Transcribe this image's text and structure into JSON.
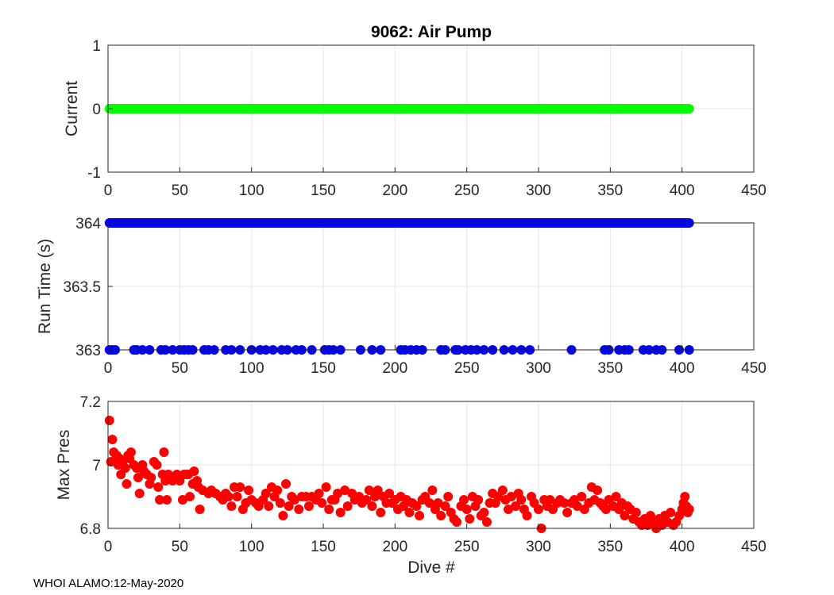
{
  "figure": {
    "footer": "WHOI ALAMO:12-May-2020"
  },
  "chart_data": [
    {
      "type": "scatter",
      "title": "9062: Air Pump",
      "ylabel": "Current",
      "xlabel": "",
      "xlim": [
        0,
        450
      ],
      "ylim": [
        -1,
        1
      ],
      "xticks": [
        0,
        50,
        100,
        150,
        200,
        250,
        300,
        350,
        400,
        450
      ],
      "yticks": [
        -1,
        0,
        1
      ],
      "ytick_labels": [
        "-1",
        "0",
        "1"
      ],
      "grid": true,
      "color": "#00ff00",
      "series": [
        {
          "name": "Current",
          "x_start": 1,
          "x_end": 405,
          "x_step": 1,
          "value": 0
        }
      ]
    },
    {
      "type": "scatter",
      "title": "",
      "ylabel": "Run Time (s)",
      "xlabel": "",
      "xlim": [
        0,
        450
      ],
      "ylim": [
        363,
        364
      ],
      "xticks": [
        0,
        50,
        100,
        150,
        200,
        250,
        300,
        350,
        400,
        450
      ],
      "yticks": [
        363,
        363.5,
        364
      ],
      "ytick_labels": [
        "363",
        "363.5",
        "364"
      ],
      "grid": true,
      "color": "#0000ff",
      "series": [
        {
          "name": "364 s",
          "value": 364,
          "x_start": 1,
          "x_end": 405,
          "x_step": 1
        },
        {
          "name": "363 s",
          "value": 363,
          "x": [
            1,
            3,
            5,
            18,
            20,
            24,
            29,
            37,
            40,
            45,
            50,
            53,
            56,
            59,
            67,
            70,
            74,
            82,
            86,
            92,
            100,
            106,
            110,
            115,
            121,
            125,
            131,
            135,
            142,
            151,
            154,
            157,
            162,
            176,
            184,
            190,
            204,
            207,
            211,
            215,
            219,
            232,
            235,
            242,
            244,
            249,
            253,
            257,
            262,
            268,
            276,
            282,
            288,
            294,
            323,
            346,
            349,
            356,
            360,
            363,
            373,
            377,
            382,
            386,
            398,
            405
          ]
        }
      ]
    },
    {
      "type": "scatter",
      "title": "",
      "ylabel": "Max Pres",
      "xlabel": "Dive #",
      "xlim": [
        0,
        450
      ],
      "ylim": [
        6.8,
        7.2
      ],
      "xticks": [
        0,
        50,
        100,
        150,
        200,
        250,
        300,
        350,
        400,
        450
      ],
      "yticks": [
        6.8,
        7.0,
        7.2
      ],
      "ytick_labels": [
        "6.8",
        "7",
        "7.2"
      ],
      "grid": true,
      "color": "#ff0000",
      "series": [
        {
          "name": "Max Pres",
          "points": [
            [
              1,
              7.14
            ],
            [
              2,
              7.01
            ],
            [
              3,
              7.08
            ],
            [
              4,
              7.04
            ],
            [
              6,
              7.03
            ],
            [
              7,
              7.0
            ],
            [
              8,
              7.02
            ],
            [
              9,
              6.97
            ],
            [
              10,
              7.01
            ],
            [
              12,
              6.99
            ],
            [
              13,
              6.94
            ],
            [
              14,
              7.03
            ],
            [
              15,
              7.02
            ],
            [
              16,
              7.04
            ],
            [
              18,
              7.0
            ],
            [
              20,
              6.99
            ],
            [
              21,
              6.96
            ],
            [
              22,
              6.91
            ],
            [
              24,
              7.0
            ],
            [
              25,
              6.98
            ],
            [
              27,
              6.97
            ],
            [
              29,
              6.94
            ],
            [
              30,
              6.96
            ],
            [
              32,
              7.01
            ],
            [
              34,
              7.0
            ],
            [
              35,
              6.93
            ],
            [
              36,
              6.89
            ],
            [
              38,
              6.97
            ],
            [
              39,
              7.04
            ],
            [
              40,
              6.95
            ],
            [
              41,
              6.89
            ],
            [
              42,
              6.97
            ],
            [
              45,
              6.95
            ],
            [
              47,
              6.96
            ],
            [
              48,
              6.97
            ],
            [
              50,
              6.95
            ],
            [
              52,
              6.89
            ],
            [
              53,
              6.97
            ],
            [
              55,
              6.97
            ],
            [
              56,
              6.97
            ],
            [
              57,
              6.9
            ],
            [
              59,
              6.94
            ],
            [
              60,
              6.98
            ],
            [
              62,
              6.95
            ],
            [
              63,
              6.93
            ],
            [
              64,
              6.86
            ],
            [
              66,
              6.92
            ],
            [
              70,
              6.91
            ],
            [
              72,
              6.92
            ],
            [
              75,
              6.91
            ],
            [
              78,
              6.9
            ],
            [
              80,
              6.89
            ],
            [
              82,
              6.91
            ],
            [
              84,
              6.9
            ],
            [
              86,
              6.87
            ],
            [
              88,
              6.93
            ],
            [
              90,
              6.9
            ],
            [
              92,
              6.93
            ],
            [
              94,
              6.86
            ],
            [
              96,
              6.88
            ],
            [
              98,
              6.92
            ],
            [
              100,
              6.89
            ],
            [
              103,
              6.88
            ],
            [
              105,
              6.87
            ],
            [
              108,
              6.89
            ],
            [
              110,
              6.91
            ],
            [
              112,
              6.87
            ],
            [
              114,
              6.93
            ],
            [
              116,
              6.9
            ],
            [
              118,
              6.92
            ],
            [
              120,
              6.88
            ],
            [
              122,
              6.84
            ],
            [
              124,
              6.94
            ],
            [
              126,
              6.87
            ],
            [
              128,
              6.9
            ],
            [
              130,
              6.89
            ],
            [
              133,
              6.86
            ],
            [
              135,
              6.9
            ],
            [
              138,
              6.9
            ],
            [
              140,
              6.87
            ],
            [
              142,
              6.9
            ],
            [
              145,
              6.89
            ],
            [
              147,
              6.91
            ],
            [
              149,
              6.88
            ],
            [
              152,
              6.93
            ],
            [
              154,
              6.86
            ],
            [
              156,
              6.89
            ],
            [
              158,
              6.89
            ],
            [
              160,
              6.91
            ],
            [
              162,
              6.85
            ],
            [
              165,
              6.92
            ],
            [
              167,
              6.87
            ],
            [
              170,
              6.91
            ],
            [
              172,
              6.89
            ],
            [
              175,
              6.9
            ],
            [
              177,
              6.88
            ],
            [
              180,
              6.89
            ],
            [
              182,
              6.92
            ],
            [
              184,
              6.87
            ],
            [
              186,
              6.9
            ],
            [
              188,
              6.92
            ],
            [
              190,
              6.85
            ],
            [
              192,
              6.9
            ],
            [
              194,
              6.88
            ],
            [
              196,
              6.91
            ],
            [
              198,
              6.88
            ],
            [
              200,
              6.89
            ],
            [
              202,
              6.86
            ],
            [
              204,
              6.9
            ],
            [
              206,
              6.87
            ],
            [
              208,
              6.89
            ],
            [
              210,
              6.85
            ],
            [
              212,
              6.88
            ],
            [
              215,
              6.87
            ],
            [
              217,
              6.84
            ],
            [
              219,
              6.89
            ],
            [
              221,
              6.9
            ],
            [
              224,
              6.88
            ],
            [
              226,
              6.92
            ],
            [
              228,
              6.86
            ],
            [
              230,
              6.88
            ],
            [
              232,
              6.84
            ],
            [
              235,
              6.87
            ],
            [
              237,
              6.9
            ],
            [
              239,
              6.85
            ],
            [
              241,
              6.83
            ],
            [
              243,
              6.82
            ],
            [
              246,
              6.87
            ],
            [
              248,
              6.89
            ],
            [
              250,
              6.86
            ],
            [
              252,
              6.83
            ],
            [
              254,
              6.9
            ],
            [
              256,
              6.87
            ],
            [
              258,
              6.89
            ],
            [
              260,
              6.84
            ],
            [
              262,
              6.85
            ],
            [
              264,
              6.82
            ],
            [
              266,
              6.88
            ],
            [
              268,
              6.91
            ],
            [
              270,
              6.88
            ],
            [
              272,
              6.9
            ],
            [
              275,
              6.92
            ],
            [
              277,
              6.89
            ],
            [
              279,
              6.86
            ],
            [
              281,
              6.9
            ],
            [
              284,
              6.87
            ],
            [
              286,
              6.91
            ],
            [
              288,
              6.89
            ],
            [
              290,
              6.86
            ],
            [
              292,
              6.84
            ],
            [
              295,
              6.9
            ],
            [
              297,
              6.88
            ],
            [
              300,
              6.86
            ],
            [
              302,
              6.8
            ],
            [
              304,
              6.89
            ],
            [
              306,
              6.87
            ],
            [
              308,
              6.89
            ],
            [
              310,
              6.86
            ],
            [
              313,
              6.88
            ],
            [
              315,
              6.89
            ],
            [
              318,
              6.88
            ],
            [
              320,
              6.85
            ],
            [
              323,
              6.88
            ],
            [
              325,
              6.89
            ],
            [
              327,
              6.87
            ],
            [
              330,
              6.9
            ],
            [
              332,
              6.86
            ],
            [
              335,
              6.88
            ],
            [
              337,
              6.93
            ],
            [
              339,
              6.89
            ],
            [
              341,
              6.92
            ],
            [
              343,
              6.88
            ],
            [
              345,
              6.87
            ],
            [
              347,
              6.86
            ],
            [
              349,
              6.89
            ],
            [
              352,
              6.87
            ],
            [
              354,
              6.9
            ],
            [
              356,
              6.86
            ],
            [
              358,
              6.88
            ],
            [
              360,
              6.84
            ],
            [
              362,
              6.87
            ],
            [
              364,
              6.86
            ],
            [
              366,
              6.83
            ],
            [
              368,
              6.85
            ],
            [
              370,
              6.82
            ],
            [
              372,
              6.81
            ],
            [
              374,
              6.83
            ],
            [
              376,
              6.81
            ],
            [
              378,
              6.84
            ],
            [
              380,
              6.82
            ],
            [
              382,
              6.8
            ],
            [
              384,
              6.83
            ],
            [
              386,
              6.81
            ],
            [
              388,
              6.84
            ],
            [
              390,
              6.82
            ],
            [
              392,
              6.85
            ],
            [
              394,
              6.81
            ],
            [
              396,
              6.82
            ],
            [
              398,
              6.84
            ],
            [
              400,
              6.86
            ],
            [
              401,
              6.88
            ],
            [
              402,
              6.9
            ],
            [
              403,
              6.87
            ],
            [
              404,
              6.85
            ],
            [
              405,
              6.86
            ]
          ]
        }
      ]
    }
  ]
}
